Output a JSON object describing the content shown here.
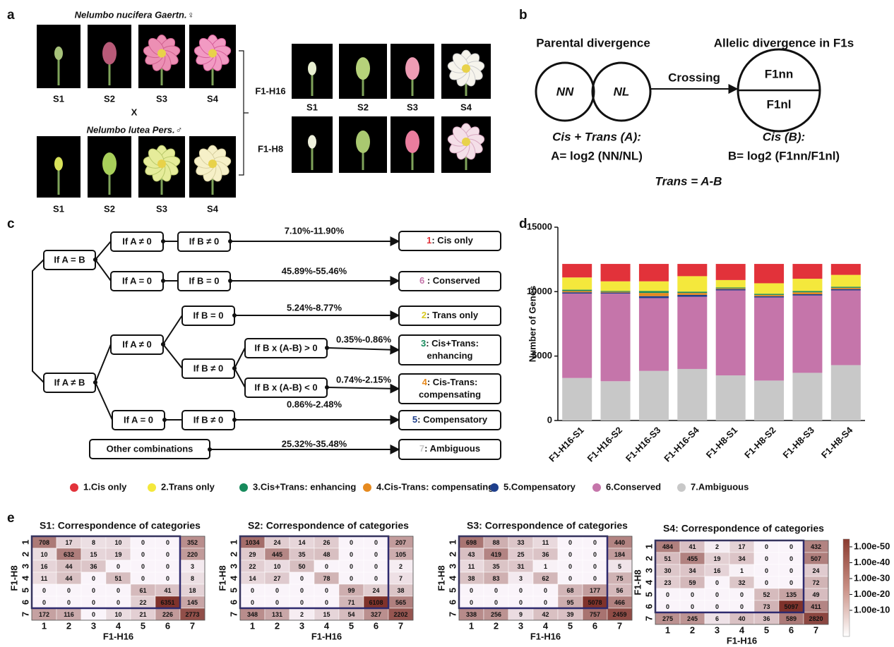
{
  "panel_a": {
    "label": "a",
    "parent1": "Nelumbo nucifera Gaertn.♀",
    "cross": "X",
    "parent2": "Nelumbo lutea Pers.♂",
    "hybrid1": "F1-H16",
    "hybrid2": "F1-H8",
    "stages": [
      "S1",
      "S2",
      "S3",
      "S4"
    ]
  },
  "panel_b": {
    "label": "b",
    "parental_title": "Parental divergence",
    "allelic_title": "Allelic divergence in F1s",
    "parent_nodes": [
      "NN",
      "NL"
    ],
    "crossing": "Crossing",
    "f1_top": "F1nn",
    "f1_bottom": "F1nl",
    "cis_trans_label": "Cis + Trans (A):",
    "a_formula": "A= log2 (NN/NL)",
    "cis_label": "Cis (B):",
    "b_formula": "B= log2 (F1nn/F1nl)",
    "trans_formula": "Trans = A-B"
  },
  "panel_c": {
    "label": "c",
    "conditions": [
      "If A = B",
      "If A ≠ 0",
      "If B ≠ 0",
      "If A = 0",
      "If B = 0",
      "If A ≠ B",
      "If A ≠ 0",
      "If B = 0",
      "If B ≠ 0",
      "If B x (A-B) > 0",
      "If B x (A-B) < 0",
      "If A = 0",
      "If B ≠ 0",
      "Other combinations"
    ],
    "results": [
      {
        "num": "1",
        "text": ": Cis only"
      },
      {
        "num": "6",
        "text": " : Conserved"
      },
      {
        "num": "2",
        "text": ": Trans only"
      },
      {
        "num": "3",
        "text": ": Cis+Trans:",
        "text2": "enhancing"
      },
      {
        "num": "4",
        "text": ": Cis-Trans:",
        "text2": "compensating"
      },
      {
        "num": "5",
        "text": ": Compensatory"
      },
      {
        "num": "7",
        "text": ": Ambiguous"
      }
    ],
    "percentages": [
      "7.10%-11.90%",
      "45.89%-55.46%",
      "5.24%-8.77%",
      "0.35%-0.86%",
      "0.74%-2.15%",
      "0.86%-2.48%",
      "25.32%-35.48%"
    ]
  },
  "panel_d_label": "d",
  "chart_data": {
    "type": "stacked_bar",
    "y_label": "Number of Genes",
    "categories": [
      "F1-H16-S1",
      "F1-H16-S2",
      "F1-H16-S3",
      "F1-H16-S4",
      "F1-H8-S1",
      "F1-H8-S2",
      "F1-H8-S3",
      "F1-H8-S4"
    ],
    "ylim": [
      0,
      15000
    ],
    "yticks": [
      0,
      5000,
      10000,
      15000
    ],
    "series": [
      {
        "name": "1.Cis only",
        "color": "#e2323a",
        "values": [
          1050,
          1350,
          1350,
          950,
          1250,
          1500,
          1150,
          850
        ]
      },
      {
        "name": "2.Trans only",
        "color": "#f4e83c",
        "values": [
          950,
          750,
          750,
          1200,
          580,
          820,
          950,
          920
        ]
      },
      {
        "name": "3.Cis+Trans: enhancing",
        "color": "#178a5c",
        "values": [
          100,
          60,
          150,
          100,
          60,
          80,
          100,
          80
        ]
      },
      {
        "name": "4.Cis-Trans: compensating",
        "color": "#e68a1f",
        "values": [
          100,
          60,
          250,
          150,
          60,
          100,
          150,
          100
        ]
      },
      {
        "name": "5.Compensatory",
        "color": "#1e3f8c",
        "values": [
          100,
          80,
          150,
          150,
          100,
          100,
          100,
          100
        ]
      },
      {
        "name": "6.Conserved",
        "color": "#c575aa",
        "values": [
          6550,
          6800,
          5650,
          5600,
          6600,
          6450,
          6000,
          5800
        ]
      },
      {
        "name": "7.Ambiguous",
        "color": "#c8c8c8",
        "values": [
          3300,
          3050,
          3850,
          4000,
          3500,
          3100,
          3700,
          4300
        ]
      }
    ]
  },
  "panel_e": {
    "label": "e",
    "y_label": "F1-H8",
    "x_label": "F1-H16",
    "category_labels": [
      "1",
      "2",
      "3",
      "4",
      "5",
      "6",
      "7"
    ],
    "heatmaps": [
      {
        "title": "S1: Correspondence of categories",
        "matrix": [
          [
            708,
            17,
            8,
            10,
            0,
            0,
            352
          ],
          [
            10,
            632,
            15,
            19,
            0,
            0,
            220
          ],
          [
            16,
            44,
            36,
            0,
            0,
            0,
            3
          ],
          [
            11,
            44,
            0,
            51,
            0,
            0,
            8
          ],
          [
            0,
            0,
            0,
            0,
            61,
            41,
            18
          ],
          [
            0,
            0,
            0,
            0,
            22,
            6351,
            145
          ],
          [
            172,
            116,
            0,
            10,
            21,
            226,
            2773
          ]
        ]
      },
      {
        "title": "S2: Correspondence of categories",
        "matrix": [
          [
            1034,
            24,
            14,
            26,
            0,
            0,
            207
          ],
          [
            29,
            445,
            35,
            48,
            0,
            0,
            105
          ],
          [
            22,
            10,
            50,
            0,
            0,
            0,
            2
          ],
          [
            14,
            27,
            0,
            78,
            0,
            0,
            7
          ],
          [
            0,
            0,
            0,
            0,
            99,
            24,
            38
          ],
          [
            0,
            0,
            0,
            0,
            71,
            6108,
            565
          ],
          [
            348,
            131,
            2,
            15,
            54,
            327,
            2202
          ]
        ]
      },
      {
        "title": "S3: Correspondence of categories",
        "matrix": [
          [
            698,
            88,
            33,
            11,
            0,
            0,
            440
          ],
          [
            43,
            419,
            25,
            36,
            0,
            0,
            184
          ],
          [
            11,
            35,
            31,
            1,
            0,
            0,
            5
          ],
          [
            38,
            83,
            3,
            62,
            0,
            0,
            75
          ],
          [
            0,
            0,
            0,
            0,
            68,
            177,
            56
          ],
          [
            0,
            0,
            0,
            0,
            95,
            5078,
            466
          ],
          [
            338,
            256,
            9,
            42,
            39,
            757,
            2459
          ]
        ]
      },
      {
        "title": "S4: Correspondence of categories",
        "matrix": [
          [
            484,
            41,
            2,
            17,
            0,
            0,
            432
          ],
          [
            51,
            455,
            19,
            34,
            0,
            0,
            507
          ],
          [
            30,
            34,
            16,
            1,
            0,
            0,
            24
          ],
          [
            23,
            59,
            0,
            32,
            0,
            0,
            72
          ],
          [
            0,
            0,
            0,
            0,
            52,
            135,
            49
          ],
          [
            0,
            0,
            0,
            0,
            73,
            5097,
            411
          ],
          [
            275,
            245,
            6,
            40,
            36,
            589,
            2820
          ]
        ]
      }
    ],
    "colorbar_ticks": [
      {
        "value": 1e-50,
        "label": "1.00e-50"
      },
      {
        "value": 1e-40,
        "label": "1.00e-40"
      },
      {
        "value": 1e-30,
        "label": "1.00e-30"
      },
      {
        "value": 1e-20,
        "label": "1.00e-20"
      },
      {
        "value": 1e-10,
        "label": "1.00e-10"
      }
    ]
  }
}
